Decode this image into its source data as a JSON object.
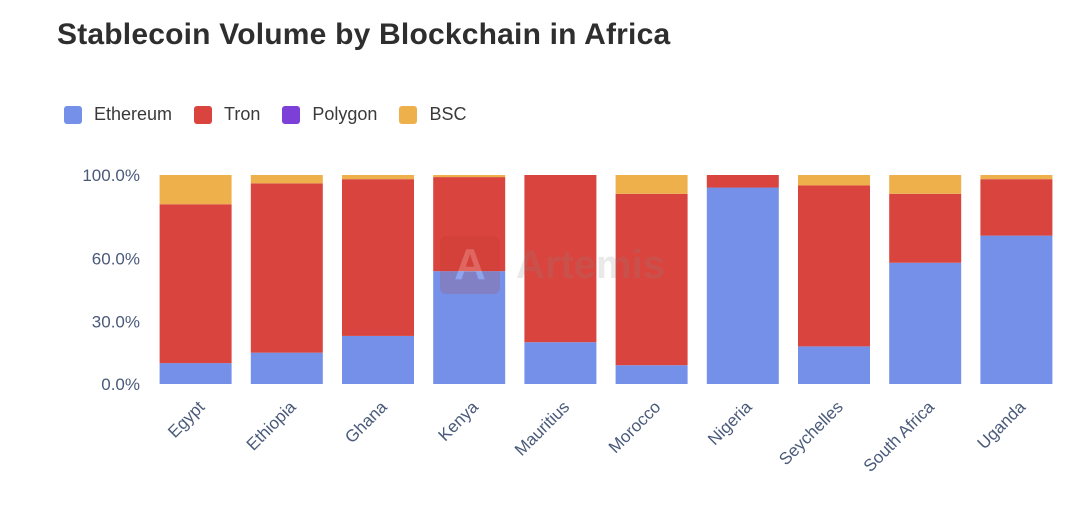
{
  "chart_data": {
    "type": "bar",
    "stacked": true,
    "title": "Stablecoin Volume by Blockchain in Africa",
    "categories": [
      "Egypt",
      "Ethiopia",
      "Ghana",
      "Kenya",
      "Mauritius",
      "Morocco",
      "Nigeria",
      "Seychelles",
      "South Africa",
      "Uganda"
    ],
    "series": [
      {
        "name": "Ethereum",
        "color": "#7590e8",
        "values": [
          10,
          15,
          23,
          54,
          20,
          9,
          94,
          18,
          58,
          71
        ]
      },
      {
        "name": "Tron",
        "color": "#d9443e",
        "values": [
          76,
          81,
          75,
          45,
          80,
          82,
          6,
          77,
          33,
          27
        ]
      },
      {
        "name": "Polygon",
        "color": "#7c3fd8",
        "values": [
          0,
          0,
          0,
          0,
          0,
          0,
          0,
          0,
          0,
          0
        ]
      },
      {
        "name": "BSC",
        "color": "#eeb04a",
        "values": [
          14,
          4,
          2,
          1,
          0,
          9,
          0,
          5,
          9,
          2
        ]
      }
    ],
    "yticks": [
      "0.0%",
      "30.0%",
      "60.0%",
      "100.0%"
    ],
    "ylim": [
      0,
      100
    ],
    "legend_position": "top-left",
    "watermark": "Artemis"
  }
}
